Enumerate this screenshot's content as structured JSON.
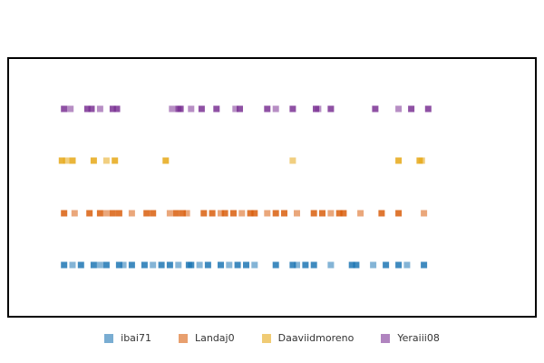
{
  "chart_data": {
    "type": "scatter",
    "title": "",
    "xlabel": "",
    "ylabel": "",
    "grid": false,
    "legend_position": "bottom-center",
    "xlim": [
      0,
      100
    ],
    "series": [
      {
        "name": "ibai71",
        "color": "#1f77b4",
        "x": [
          1,
          3,
          5,
          8,
          9.5,
          11,
          14,
          15,
          17,
          20,
          22,
          24,
          26,
          28,
          30.5,
          31,
          33,
          35,
          38,
          40,
          42,
          44,
          46,
          51,
          55,
          56,
          58,
          60,
          64,
          69,
          70,
          74,
          77,
          80,
          82,
          86
        ]
      },
      {
        "name": "Landaj0",
        "color": "#d95f0e",
        "x": [
          1,
          3.5,
          7,
          9.5,
          11,
          12.5,
          14,
          17,
          20.5,
          22,
          26,
          27.5,
          29,
          30,
          34,
          36,
          38,
          39,
          41,
          43,
          45,
          46,
          49,
          51,
          53,
          56,
          60,
          62,
          64,
          66,
          67,
          71,
          76,
          80,
          86
        ]
      },
      {
        "name": "Daaviidmoreno",
        "color": "#e6a817",
        "x": [
          0.5,
          1.5,
          3,
          8,
          11,
          13,
          25,
          55,
          80,
          85,
          85.5
        ]
      },
      {
        "name": "Yeraiii08",
        "color": "#7b3294",
        "x": [
          1,
          2.5,
          6.5,
          7.5,
          9.5,
          12.5,
          13.5,
          26.5,
          28,
          28.5,
          31,
          33.5,
          37,
          41.5,
          42.5,
          49,
          51,
          55,
          60.5,
          61,
          64,
          74.5,
          80,
          83,
          87
        ]
      }
    ]
  }
}
